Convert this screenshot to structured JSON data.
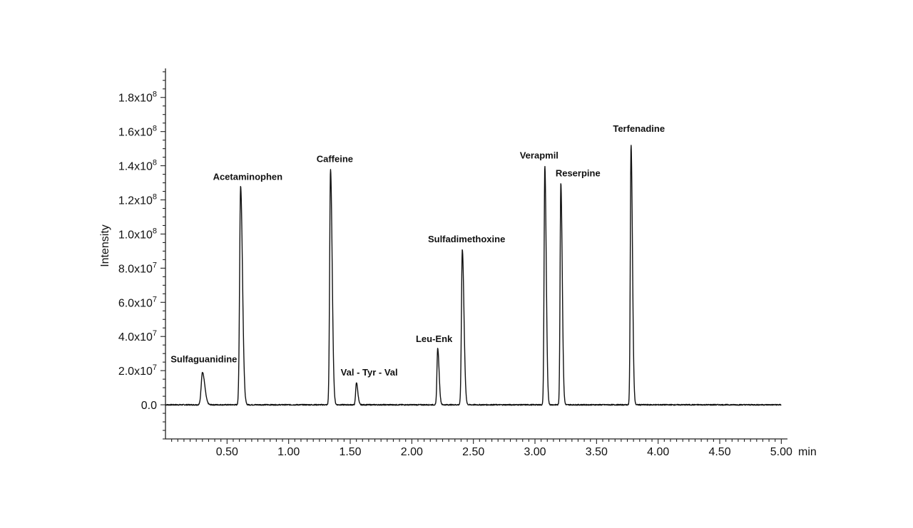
{
  "chart_data": {
    "type": "line",
    "xlabel": "",
    "x_unit_label": "min",
    "ylabel": "Intensity",
    "xlim": [
      0.0,
      5.05
    ],
    "ylim": [
      -20000000.0,
      197000000.0
    ],
    "grid": false,
    "x_ticks": [
      {
        "value": 0.5,
        "label": "0.50"
      },
      {
        "value": 1.0,
        "label": "1.00"
      },
      {
        "value": 1.5,
        "label": "1.50"
      },
      {
        "value": 2.0,
        "label": "2.00"
      },
      {
        "value": 2.5,
        "label": "2.50"
      },
      {
        "value": 3.0,
        "label": "3.00"
      },
      {
        "value": 3.5,
        "label": "3.50"
      },
      {
        "value": 4.0,
        "label": "4.00"
      },
      {
        "value": 4.5,
        "label": "4.50"
      },
      {
        "value": 5.0,
        "label": "5.00"
      }
    ],
    "y_ticks": [
      {
        "value": 0,
        "mantissa": "0.0",
        "exponent": ""
      },
      {
        "value": 20000000.0,
        "mantissa": "2.0x10",
        "exponent": "7"
      },
      {
        "value": 40000000.0,
        "mantissa": "4.0x10",
        "exponent": "7"
      },
      {
        "value": 60000000.0,
        "mantissa": "6.0x10",
        "exponent": "7"
      },
      {
        "value": 80000000.0,
        "mantissa": "8.0x10",
        "exponent": "7"
      },
      {
        "value": 100000000.0,
        "mantissa": "1.0x10",
        "exponent": "8"
      },
      {
        "value": 120000000.0,
        "mantissa": "1.2x10",
        "exponent": "8"
      },
      {
        "value": 140000000.0,
        "mantissa": "1.4x10",
        "exponent": "8"
      },
      {
        "value": 160000000.0,
        "mantissa": "1.6x10",
        "exponent": "8"
      },
      {
        "value": 180000000.0,
        "mantissa": "1.8x10",
        "exponent": "8"
      }
    ],
    "trace_x_range": [
      0.0,
      5.0
    ],
    "peaks": [
      {
        "label": "Sulfaguanidine",
        "rt": 0.3,
        "height": 19000000.0,
        "width": 0.01
      },
      {
        "label": "Acetaminophen",
        "rt": 0.61,
        "height": 128000000.0,
        "width": 0.008
      },
      {
        "label": "Caffeine",
        "rt": 1.34,
        "height": 138000000.0,
        "width": 0.007
      },
      {
        "label": "Val - Tyr - Val",
        "rt": 1.55,
        "height": 13000000.0,
        "width": 0.006
      },
      {
        "label": "Leu-Enk",
        "rt": 2.21,
        "height": 33000000.0,
        "width": 0.006
      },
      {
        "label": "Sulfadimethoxine",
        "rt": 2.41,
        "height": 91000000.0,
        "width": 0.007
      },
      {
        "label": "Verapmil",
        "rt": 3.08,
        "height": 140000000.0,
        "width": 0.006
      },
      {
        "label": "Reserpine",
        "rt": 3.21,
        "height": 130000000.0,
        "width": 0.006
      },
      {
        "label": "Terfenadine",
        "rt": 3.78,
        "height": 152000000.0,
        "width": 0.006
      }
    ]
  }
}
